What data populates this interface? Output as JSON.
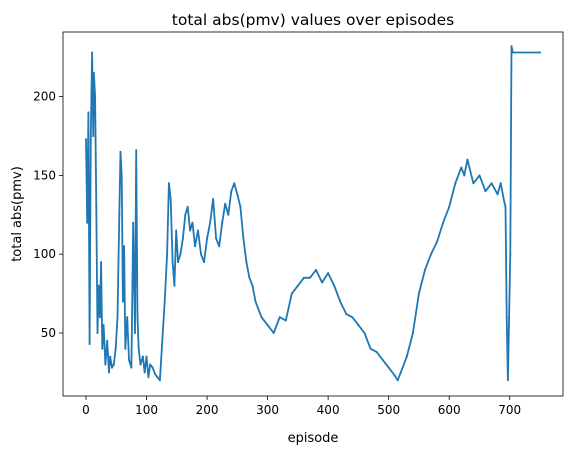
{
  "chart_data": {
    "type": "line",
    "title": "total abs(pmv) values over episodes",
    "xlabel": "episode",
    "ylabel": "total abs(pmv)",
    "xlim": [
      -38,
      788
    ],
    "ylim": [
      10,
      241
    ],
    "xticks": [
      0,
      100,
      200,
      300,
      400,
      500,
      600,
      700
    ],
    "yticks": [
      50,
      100,
      150,
      200
    ],
    "grid": false,
    "legend": "none",
    "series": [
      {
        "color": "#1f77b4",
        "x": [
          0,
          2,
          4,
          6,
          8,
          10,
          12,
          13,
          15,
          17,
          19,
          21,
          23,
          25,
          27,
          29,
          32,
          35,
          38,
          40,
          43,
          46,
          49,
          52,
          55,
          57,
          59,
          61,
          63,
          65,
          68,
          71,
          75,
          78,
          81,
          83,
          85,
          87,
          90,
          94,
          97,
          100,
          103,
          106,
          110,
          114,
          118,
          122,
          126,
          130,
          134,
          137,
          140,
          143,
          146,
          149,
          152,
          156,
          160,
          164,
          168,
          172,
          176,
          180,
          185,
          190,
          195,
          200,
          205,
          210,
          215,
          220,
          225,
          230,
          235,
          240,
          245,
          250,
          255,
          260,
          265,
          270,
          275,
          280,
          290,
          300,
          310,
          320,
          330,
          340,
          350,
          360,
          370,
          380,
          390,
          400,
          410,
          420,
          430,
          440,
          450,
          460,
          470,
          480,
          490,
          500,
          510,
          515,
          520,
          530,
          540,
          550,
          560,
          570,
          580,
          590,
          600,
          610,
          620,
          625,
          630,
          640,
          650,
          660,
          670,
          680,
          685,
          690,
          693,
          695,
          697,
          699,
          701,
          703,
          705,
          750
        ],
        "y": [
          173,
          120,
          190,
          43,
          175,
          228,
          175,
          215,
          200,
          130,
          50,
          80,
          60,
          95,
          40,
          55,
          30,
          45,
          25,
          35,
          28,
          30,
          40,
          60,
          125,
          165,
          150,
          70,
          105,
          40,
          60,
          33,
          28,
          120,
          50,
          166,
          60,
          40,
          30,
          35,
          25,
          35,
          22,
          30,
          28,
          24,
          22,
          20,
          45,
          70,
          100,
          145,
          135,
          95,
          80,
          115,
          95,
          100,
          110,
          125,
          130,
          115,
          120,
          105,
          115,
          100,
          95,
          110,
          120,
          135,
          110,
          105,
          120,
          132,
          125,
          140,
          145,
          138,
          130,
          110,
          95,
          85,
          80,
          70,
          60,
          55,
          50,
          60,
          58,
          75,
          80,
          85,
          85,
          90,
          82,
          88,
          80,
          70,
          62,
          60,
          55,
          50,
          40,
          38,
          33,
          28,
          23,
          20,
          25,
          35,
          50,
          75,
          90,
          100,
          108,
          120,
          130,
          145,
          155,
          150,
          160,
          145,
          150,
          140,
          145,
          138,
          145,
          135,
          130,
          60,
          20,
          60,
          100,
          232,
          228,
          228
        ]
      }
    ]
  }
}
